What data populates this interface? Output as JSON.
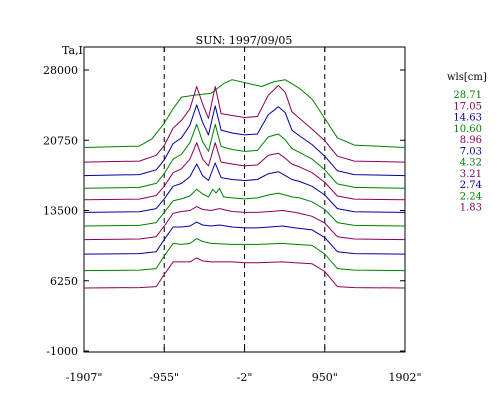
{
  "chart_data": {
    "type": "line",
    "title": "SUN: 1997/09/05",
    "ylabel": "Ta,I",
    "legend_title": "wls[cm]",
    "ylim": [
      -1000,
      28000
    ],
    "xlim": [
      -1907,
      1902
    ],
    "y_ticks": [
      {
        "value": 28000,
        "label": "28000"
      },
      {
        "value": 20750,
        "label": "20750"
      },
      {
        "value": 13500,
        "label": "13500"
      },
      {
        "value": 6250,
        "label": "6250"
      },
      {
        "value": -1000,
        "label": "-1000"
      }
    ],
    "x_ticks": [
      {
        "value": -1907,
        "label": "-1907\""
      },
      {
        "value": -955,
        "label": "-955\""
      },
      {
        "value": -2,
        "label": "-2\""
      },
      {
        "value": 950,
        "label": "950\""
      },
      {
        "value": 1902,
        "label": "1902\""
      }
    ],
    "vlines": [
      -955,
      -2,
      950
    ],
    "series": [
      {
        "name": "28.71",
        "color": "#008000",
        "offset": 20000,
        "profile": [
          [
            -1907,
            0
          ],
          [
            -1250,
            150
          ],
          [
            -1100,
            900
          ],
          [
            -955,
            2500
          ],
          [
            -850,
            4000
          ],
          [
            -750,
            5200
          ],
          [
            -600,
            5400
          ],
          [
            -400,
            5600
          ],
          [
            -250,
            6600
          ],
          [
            -150,
            7000
          ],
          [
            0,
            6700
          ],
          [
            200,
            6300
          ],
          [
            350,
            6800
          ],
          [
            480,
            7000
          ],
          [
            650,
            6100
          ],
          [
            800,
            5000
          ],
          [
            950,
            3000
          ],
          [
            1100,
            1000
          ],
          [
            1300,
            250
          ],
          [
            1902,
            0
          ]
        ]
      },
      {
        "name": "17.05",
        "color": "#8b0057",
        "offset": 18500,
        "profile": [
          [
            -1907,
            0
          ],
          [
            -1250,
            100
          ],
          [
            -1050,
            700
          ],
          [
            -955,
            1700
          ],
          [
            -850,
            3500
          ],
          [
            -750,
            4300
          ],
          [
            -650,
            5500
          ],
          [
            -570,
            7800
          ],
          [
            -500,
            6000
          ],
          [
            -430,
            4500
          ],
          [
            -350,
            7800
          ],
          [
            -280,
            5000
          ],
          [
            -150,
            4800
          ],
          [
            0,
            4600
          ],
          [
            150,
            4700
          ],
          [
            280,
            6900
          ],
          [
            400,
            7900
          ],
          [
            480,
            7200
          ],
          [
            560,
            5200
          ],
          [
            650,
            4500
          ],
          [
            800,
            3400
          ],
          [
            950,
            2200
          ],
          [
            1100,
            600
          ],
          [
            1300,
            100
          ],
          [
            1902,
            0
          ]
        ]
      },
      {
        "name": "14.63",
        "color": "#0000a0",
        "offset": 17100,
        "profile": [
          [
            -1907,
            0
          ],
          [
            -1250,
            100
          ],
          [
            -1050,
            600
          ],
          [
            -955,
            1600
          ],
          [
            -850,
            3300
          ],
          [
            -750,
            3900
          ],
          [
            -650,
            5200
          ],
          [
            -570,
            7300
          ],
          [
            -500,
            5500
          ],
          [
            -430,
            4200
          ],
          [
            -350,
            7200
          ],
          [
            -280,
            4700
          ],
          [
            -150,
            4400
          ],
          [
            0,
            4200
          ],
          [
            150,
            4300
          ],
          [
            280,
            6300
          ],
          [
            400,
            7100
          ],
          [
            480,
            6500
          ],
          [
            560,
            4700
          ],
          [
            650,
            4100
          ],
          [
            800,
            3200
          ],
          [
            950,
            2000
          ],
          [
            1100,
            500
          ],
          [
            1300,
            100
          ],
          [
            1902,
            0
          ]
        ]
      },
      {
        "name": "10.60",
        "color": "#008000",
        "offset": 15800,
        "profile": [
          [
            -1907,
            0
          ],
          [
            -1250,
            80
          ],
          [
            -1050,
            500
          ],
          [
            -955,
            1500
          ],
          [
            -850,
            3000
          ],
          [
            -750,
            3500
          ],
          [
            -650,
            4700
          ],
          [
            -570,
            6600
          ],
          [
            -500,
            4800
          ],
          [
            -430,
            3800
          ],
          [
            -350,
            6600
          ],
          [
            -280,
            4300
          ],
          [
            -150,
            4000
          ],
          [
            0,
            3800
          ],
          [
            150,
            3900
          ],
          [
            280,
            5300
          ],
          [
            400,
            5600
          ],
          [
            480,
            5000
          ],
          [
            560,
            4100
          ],
          [
            650,
            3700
          ],
          [
            800,
            3000
          ],
          [
            950,
            1900
          ],
          [
            1100,
            450
          ],
          [
            1300,
            80
          ],
          [
            1902,
            0
          ]
        ]
      },
      {
        "name": "8.96",
        "color": "#8b0057",
        "offset": 14600,
        "profile": [
          [
            -1907,
            0
          ],
          [
            -1250,
            80
          ],
          [
            -1050,
            450
          ],
          [
            -955,
            1400
          ],
          [
            -850,
            2800
          ],
          [
            -750,
            3200
          ],
          [
            -650,
            4200
          ],
          [
            -570,
            5900
          ],
          [
            -500,
            4200
          ],
          [
            -430,
            3500
          ],
          [
            -350,
            5900
          ],
          [
            -280,
            3900
          ],
          [
            -150,
            3700
          ],
          [
            0,
            3500
          ],
          [
            150,
            3600
          ],
          [
            280,
            4600
          ],
          [
            400,
            4800
          ],
          [
            480,
            4300
          ],
          [
            560,
            3700
          ],
          [
            650,
            3400
          ],
          [
            800,
            2800
          ],
          [
            950,
            1800
          ],
          [
            1100,
            400
          ],
          [
            1300,
            80
          ],
          [
            1902,
            0
          ]
        ]
      },
      {
        "name": "7.03",
        "color": "#0000a0",
        "offset": 13300,
        "profile": [
          [
            -1907,
            0
          ],
          [
            -1250,
            80
          ],
          [
            -1050,
            400
          ],
          [
            -955,
            1400
          ],
          [
            -850,
            2700
          ],
          [
            -750,
            3000
          ],
          [
            -650,
            3700
          ],
          [
            -570,
            5000
          ],
          [
            -500,
            3800
          ],
          [
            -430,
            3300
          ],
          [
            -350,
            5100
          ],
          [
            -280,
            3600
          ],
          [
            -150,
            3400
          ],
          [
            0,
            3300
          ],
          [
            150,
            3400
          ],
          [
            280,
            4000
          ],
          [
            400,
            4200
          ],
          [
            480,
            3800
          ],
          [
            560,
            3400
          ],
          [
            650,
            3200
          ],
          [
            800,
            2700
          ],
          [
            950,
            1800
          ],
          [
            1100,
            400
          ],
          [
            1300,
            80
          ],
          [
            1902,
            0
          ]
        ]
      },
      {
        "name": "4.32",
        "color": "#008000",
        "offset": 11900,
        "profile": [
          [
            -1907,
            0
          ],
          [
            -1250,
            60
          ],
          [
            -1050,
            350
          ],
          [
            -955,
            1400
          ],
          [
            -850,
            2600
          ],
          [
            -750,
            2800
          ],
          [
            -650,
            3100
          ],
          [
            -570,
            3800
          ],
          [
            -500,
            3300
          ],
          [
            -430,
            3000
          ],
          [
            -380,
            3800
          ],
          [
            -340,
            3400
          ],
          [
            -300,
            3900
          ],
          [
            -250,
            3000
          ],
          [
            -150,
            2900
          ],
          [
            0,
            2800
          ],
          [
            150,
            2900
          ],
          [
            280,
            3200
          ],
          [
            400,
            3400
          ],
          [
            480,
            3200
          ],
          [
            560,
            3000
          ],
          [
            650,
            2900
          ],
          [
            800,
            2500
          ],
          [
            950,
            1700
          ],
          [
            1100,
            350
          ],
          [
            1300,
            60
          ],
          [
            1902,
            0
          ]
        ]
      },
      {
        "name": "3.21",
        "color": "#8b0057",
        "offset": 10500,
        "profile": [
          [
            -1907,
            0
          ],
          [
            -1250,
            60
          ],
          [
            -1050,
            300
          ],
          [
            -955,
            1400
          ],
          [
            -850,
            2700
          ],
          [
            -750,
            2900
          ],
          [
            -650,
            3000
          ],
          [
            -570,
            3400
          ],
          [
            -500,
            3100
          ],
          [
            -400,
            3000
          ],
          [
            -300,
            3200
          ],
          [
            -150,
            2900
          ],
          [
            0,
            2800
          ],
          [
            150,
            2800
          ],
          [
            300,
            2900
          ],
          [
            450,
            3000
          ],
          [
            600,
            2800
          ],
          [
            800,
            2400
          ],
          [
            950,
            1700
          ],
          [
            1100,
            300
          ],
          [
            1300,
            60
          ],
          [
            1902,
            0
          ]
        ]
      },
      {
        "name": "2.74",
        "color": "#0000a0",
        "offset": 9000,
        "profile": [
          [
            -1907,
            0
          ],
          [
            -1250,
            50
          ],
          [
            -1050,
            250
          ],
          [
            -955,
            1500
          ],
          [
            -850,
            2800
          ],
          [
            -750,
            2800
          ],
          [
            -650,
            2900
          ],
          [
            -570,
            3300
          ],
          [
            -500,
            3000
          ],
          [
            -400,
            2900
          ],
          [
            -300,
            3000
          ],
          [
            -150,
            2800
          ],
          [
            0,
            2700
          ],
          [
            150,
            2700
          ],
          [
            300,
            2800
          ],
          [
            450,
            2900
          ],
          [
            600,
            2700
          ],
          [
            800,
            2500
          ],
          [
            950,
            1700
          ],
          [
            1100,
            250
          ],
          [
            1300,
            50
          ],
          [
            1902,
            0
          ]
        ]
      },
      {
        "name": "2.24",
        "color": "#008000",
        "offset": 7300,
        "profile": [
          [
            -1907,
            0
          ],
          [
            -1250,
            50
          ],
          [
            -1050,
            200
          ],
          [
            -955,
            1500
          ],
          [
            -850,
            2800
          ],
          [
            -750,
            2700
          ],
          [
            -650,
            2800
          ],
          [
            -570,
            3300
          ],
          [
            -500,
            3000
          ],
          [
            -400,
            2800
          ],
          [
            -150,
            2700
          ],
          [
            0,
            2700
          ],
          [
            150,
            2700
          ],
          [
            450,
            2800
          ],
          [
            600,
            2700
          ],
          [
            800,
            2600
          ],
          [
            950,
            1700
          ],
          [
            1100,
            200
          ],
          [
            1300,
            50
          ],
          [
            1902,
            0
          ]
        ]
      },
      {
        "name": "1.83",
        "color": "#8b0057",
        "offset": 5500,
        "profile": [
          [
            -1907,
            0
          ],
          [
            -1250,
            40
          ],
          [
            -1050,
            150
          ],
          [
            -955,
            1400
          ],
          [
            -850,
            2700
          ],
          [
            -750,
            2700
          ],
          [
            -650,
            2700
          ],
          [
            -570,
            3100
          ],
          [
            -500,
            2800
          ],
          [
            -400,
            2700
          ],
          [
            -150,
            2700
          ],
          [
            0,
            2600
          ],
          [
            150,
            2600
          ],
          [
            450,
            2700
          ],
          [
            600,
            2600
          ],
          [
            800,
            2500
          ],
          [
            950,
            1700
          ],
          [
            1100,
            150
          ],
          [
            1300,
            40
          ],
          [
            1902,
            0
          ]
        ]
      }
    ]
  }
}
